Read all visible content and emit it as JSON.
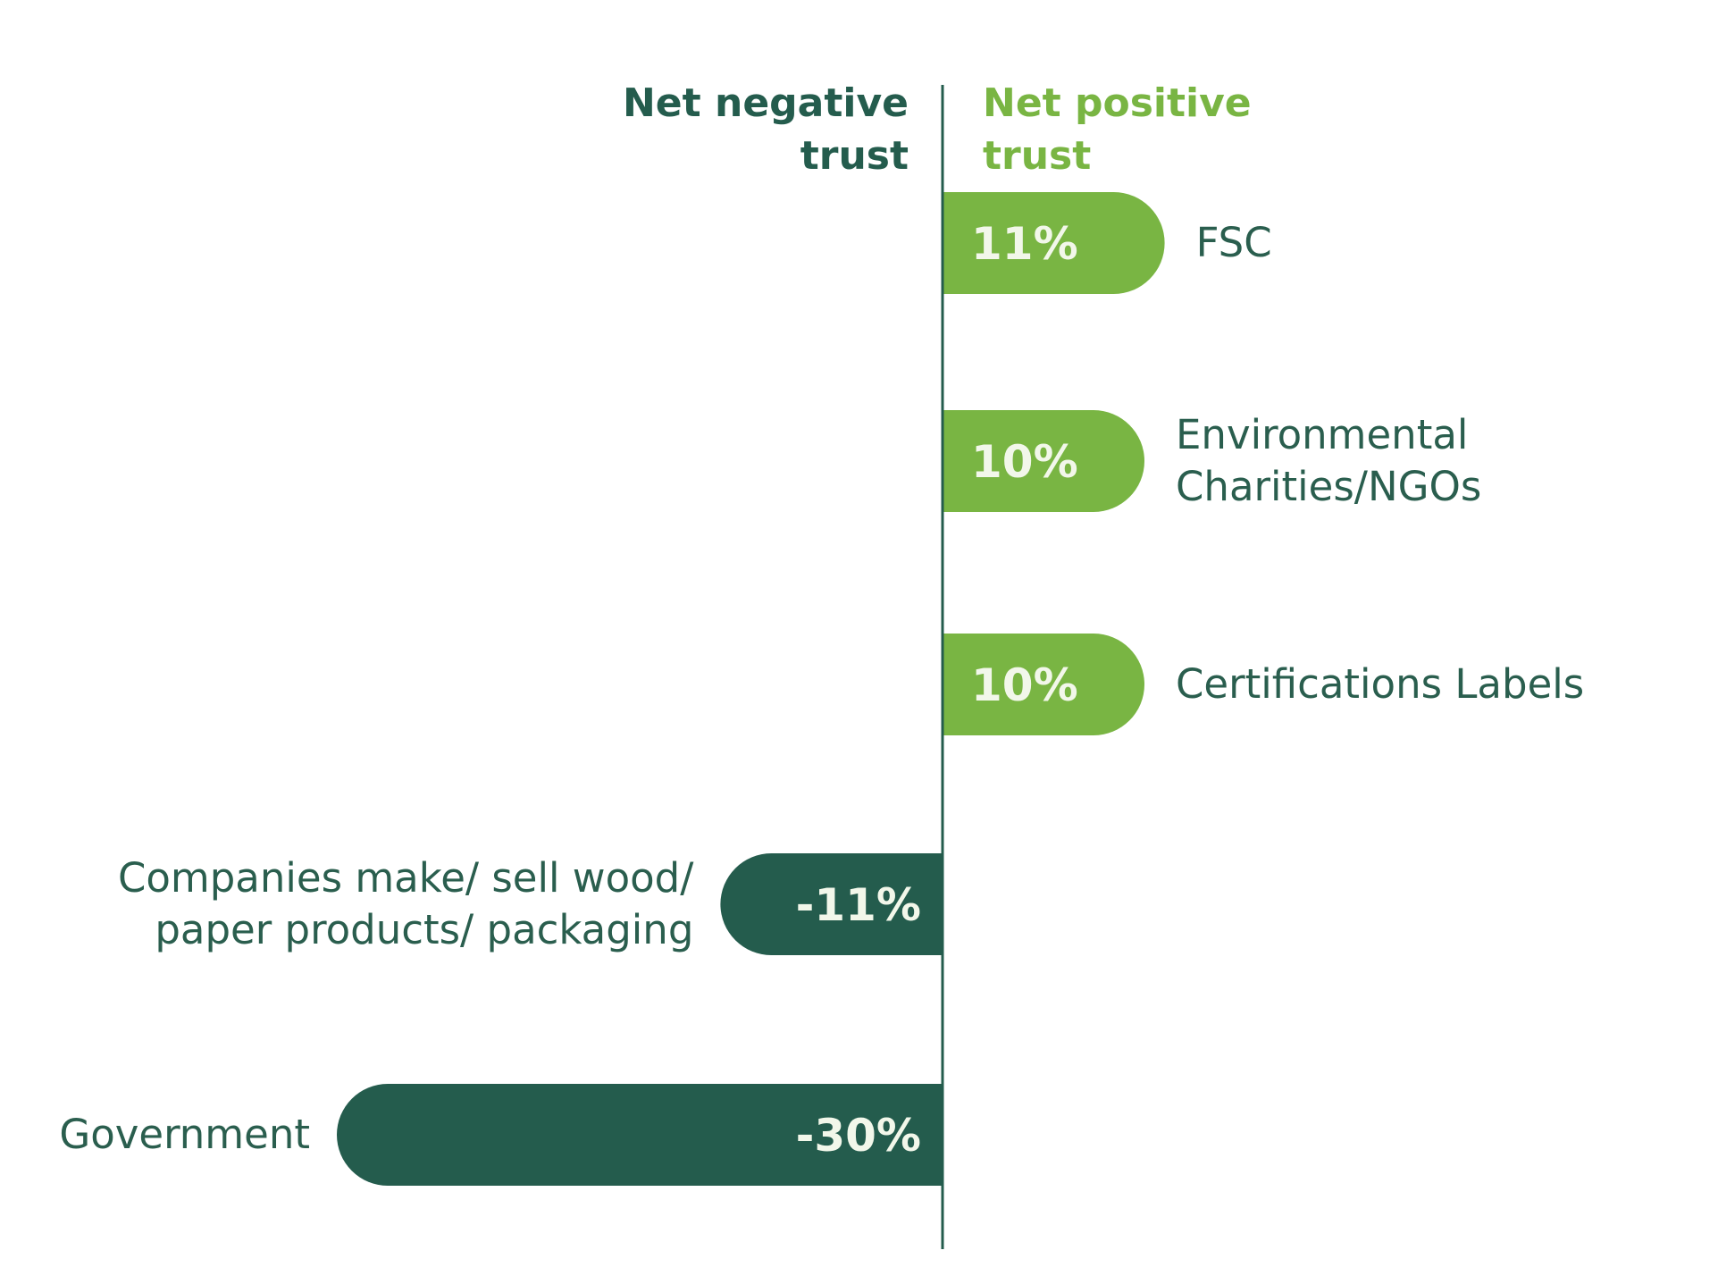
{
  "chart_data": {
    "type": "bar",
    "orientation": "horizontal",
    "headers": {
      "negative": [
        "Net negative",
        "trust"
      ],
      "positive": [
        "Net positive",
        "trust"
      ]
    },
    "unit": "%",
    "categories": [
      [
        "FSC"
      ],
      [
        "Environmental",
        "Charities/NGOs"
      ],
      [
        "Certifications Labels"
      ],
      [
        "Companies make/ sell wood/",
        "paper products/ packaging"
      ],
      [
        "Government"
      ]
    ],
    "values": [
      11,
      10,
      10,
      -11,
      -30
    ],
    "value_labels": [
      "11%",
      "10%",
      "10%",
      "-11%",
      "-30%"
    ],
    "colors": {
      "positive": "#79b543",
      "negative": "#245c4d",
      "label_text": "#2a5e4e",
      "value_text": "#f2f7ea",
      "axis": "#245c4d"
    }
  }
}
